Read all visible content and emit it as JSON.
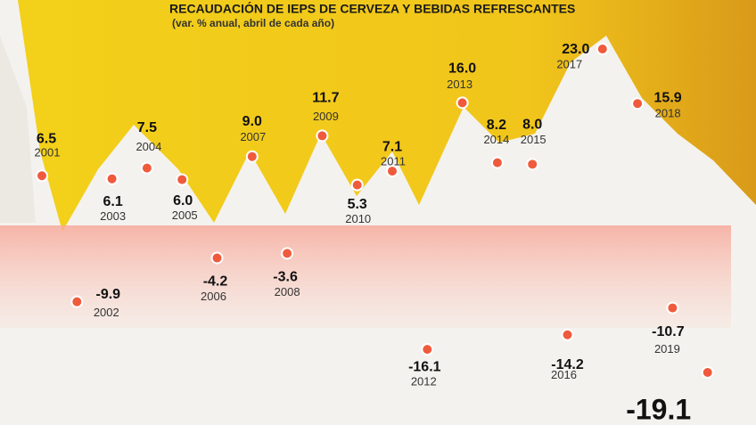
{
  "chart_data": {
    "type": "scatter",
    "title": "RECAUDACIÓN DE IEPS DE CERVEZA Y BEBIDAS REFRESCANTES",
    "subtitle": "(var. % anual, abril de cada año)",
    "categories": [
      "2001",
      "2002",
      "2003",
      "2004",
      "2005",
      "2006",
      "2007",
      "2008",
      "2009",
      "2010",
      "2011",
      "2012",
      "2013",
      "2014",
      "2015",
      "2016",
      "2017",
      "2018",
      "2019",
      null
    ],
    "values": [
      6.5,
      -9.9,
      6.1,
      7.5,
      6.0,
      -4.2,
      9.0,
      -3.6,
      11.7,
      5.3,
      7.1,
      -16.1,
      16.0,
      8.2,
      8.0,
      -14.2,
      23.0,
      15.9,
      -10.7,
      -19.1
    ],
    "value_labels": [
      "6.5",
      "-9.9",
      "6.1",
      "7.5",
      "6.0",
      "-4.2",
      "9.0",
      "-3.6",
      "11.7",
      "5.3",
      "7.1",
      "-16.1",
      "16.0",
      "8.2",
      "8.0",
      "-14.2",
      "23.0",
      "15.9",
      "-10.7",
      "-19.1"
    ],
    "color": "#f05a3c"
  }
}
